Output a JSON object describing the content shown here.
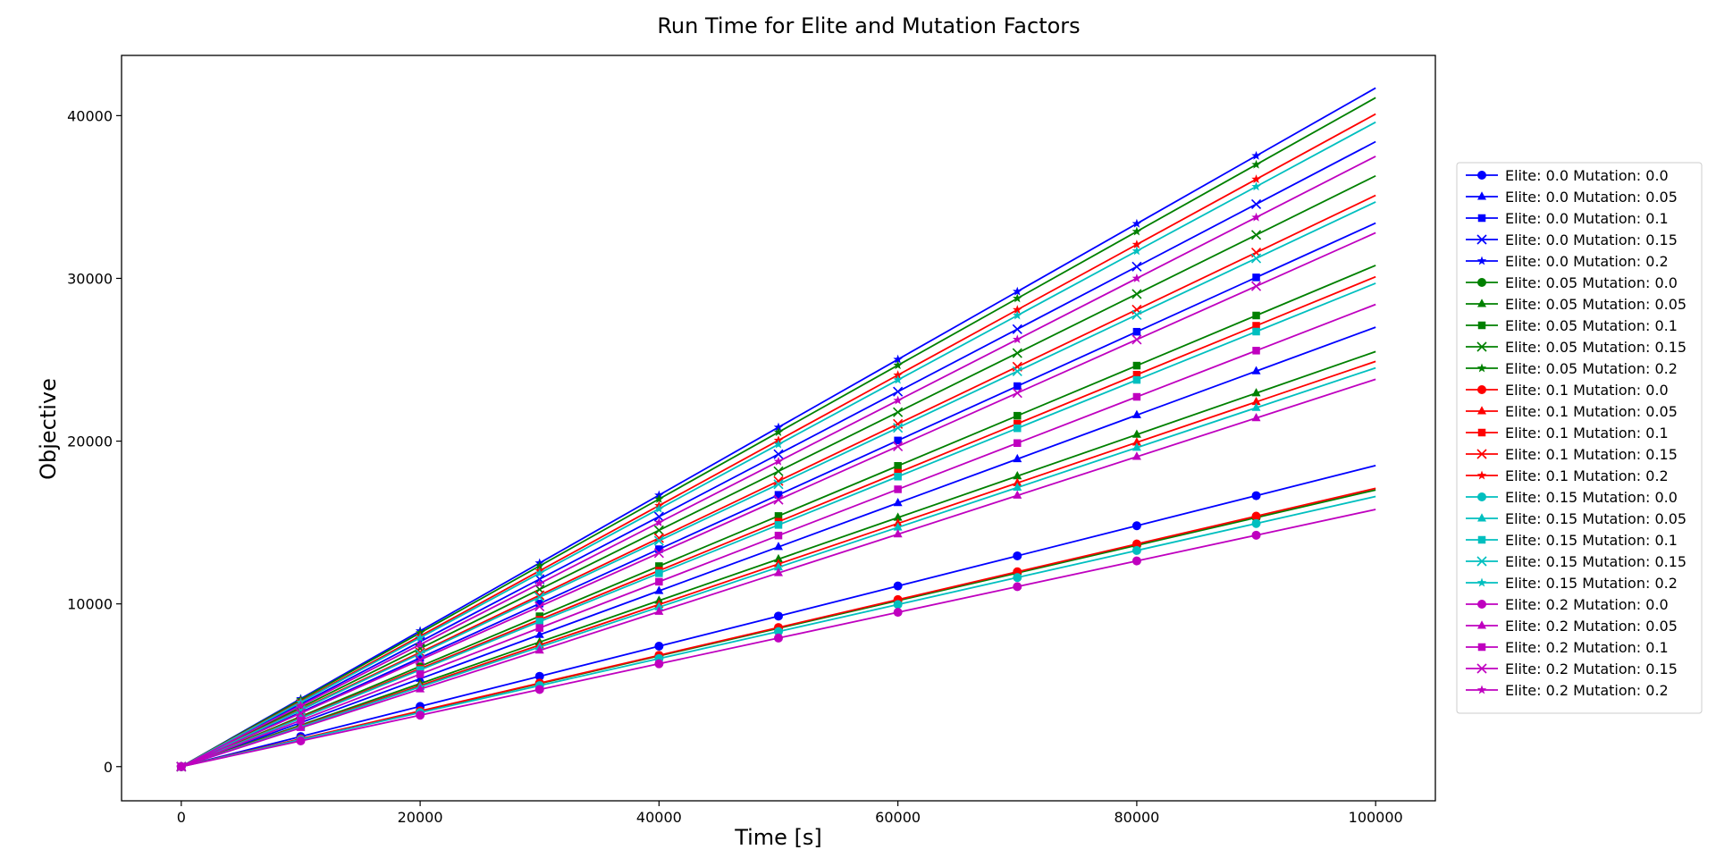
{
  "chart_data": {
    "type": "line",
    "title": "Run Time for Elite and Mutation Factors",
    "xlabel": "Time [s]",
    "ylabel": "Objective",
    "xlim": [
      -5000,
      105000
    ],
    "ylim": [
      -2100,
      43700
    ],
    "xticks": [
      0,
      20000,
      40000,
      60000,
      80000,
      100000
    ],
    "yticks": [
      0,
      10000,
      20000,
      30000,
      40000
    ],
    "x": [
      0,
      10000,
      20000,
      30000,
      40000,
      50000,
      60000,
      70000,
      80000,
      90000,
      100000
    ],
    "grid": false,
    "legend_position": "right",
    "series": [
      {
        "name": "Elite: 0.0 Mutation: 0.0",
        "color": "#0000ff",
        "marker": "circle",
        "values": [
          0,
          1850,
          3700,
          5550,
          7400,
          9250,
          11100,
          12950,
          14800,
          16650,
          18500
        ]
      },
      {
        "name": "Elite: 0.0 Mutation: 0.05",
        "color": "#0000ff",
        "marker": "triangle",
        "values": [
          0,
          2700,
          5400,
          8100,
          10800,
          13500,
          16200,
          18900,
          21600,
          24300,
          27000
        ]
      },
      {
        "name": "Elite: 0.0 Mutation: 0.1",
        "color": "#0000ff",
        "marker": "square",
        "values": [
          0,
          3340,
          6680,
          10020,
          13360,
          16700,
          20040,
          23380,
          26720,
          30060,
          33400
        ]
      },
      {
        "name": "Elite: 0.0 Mutation: 0.15",
        "color": "#0000ff",
        "marker": "x",
        "values": [
          0,
          3840,
          7680,
          11520,
          15360,
          19200,
          23040,
          26880,
          30720,
          34560,
          38400
        ]
      },
      {
        "name": "Elite: 0.0 Mutation: 0.2",
        "color": "#0000ff",
        "marker": "star",
        "values": [
          0,
          4170,
          8340,
          12510,
          16680,
          20850,
          25020,
          29190,
          33360,
          37530,
          41700
        ]
      },
      {
        "name": "Elite: 0.05 Mutation: 0.0",
        "color": "#008000",
        "marker": "circle",
        "values": [
          0,
          1700,
          3400,
          5100,
          6800,
          8500,
          10200,
          11900,
          13600,
          15300,
          17000
        ]
      },
      {
        "name": "Elite: 0.05 Mutation: 0.05",
        "color": "#008000",
        "marker": "triangle",
        "values": [
          0,
          2550,
          5100,
          7650,
          10200,
          12750,
          15300,
          17850,
          20400,
          22950,
          25500
        ]
      },
      {
        "name": "Elite: 0.05 Mutation: 0.1",
        "color": "#008000",
        "marker": "square",
        "values": [
          0,
          3080,
          6160,
          9240,
          12320,
          15400,
          18480,
          21560,
          24640,
          27720,
          30800
        ]
      },
      {
        "name": "Elite: 0.05 Mutation: 0.15",
        "color": "#008000",
        "marker": "x",
        "values": [
          0,
          3630,
          7260,
          10890,
          14520,
          18150,
          21780,
          25410,
          29040,
          32670,
          36300
        ]
      },
      {
        "name": "Elite: 0.05 Mutation: 0.2",
        "color": "#008000",
        "marker": "star",
        "values": [
          0,
          4110,
          8220,
          12330,
          16440,
          20550,
          24660,
          28770,
          32880,
          36990,
          41100
        ]
      },
      {
        "name": "Elite: 0.1 Mutation: 0.0",
        "color": "#ff0000",
        "marker": "circle",
        "values": [
          0,
          1710,
          3420,
          5130,
          6840,
          8550,
          10260,
          11970,
          13680,
          15390,
          17100
        ]
      },
      {
        "name": "Elite: 0.1 Mutation: 0.05",
        "color": "#ff0000",
        "marker": "triangle",
        "values": [
          0,
          2490,
          4980,
          7470,
          9960,
          12450,
          14940,
          17430,
          19920,
          22410,
          24900
        ]
      },
      {
        "name": "Elite: 0.1 Mutation: 0.1",
        "color": "#ff0000",
        "marker": "square",
        "values": [
          0,
          3010,
          6020,
          9030,
          12040,
          15050,
          18060,
          21070,
          24080,
          27090,
          30100
        ]
      },
      {
        "name": "Elite: 0.1 Mutation: 0.15",
        "color": "#ff0000",
        "marker": "x",
        "values": [
          0,
          3510,
          7020,
          10530,
          14040,
          17550,
          21060,
          24570,
          28080,
          31590,
          35100
        ]
      },
      {
        "name": "Elite: 0.1 Mutation: 0.2",
        "color": "#ff0000",
        "marker": "star",
        "values": [
          0,
          4010,
          8020,
          12030,
          16040,
          20050,
          24060,
          28070,
          32080,
          36090,
          40100
        ]
      },
      {
        "name": "Elite: 0.15 Mutation: 0.0",
        "color": "#00bfbf",
        "marker": "circle",
        "values": [
          0,
          1660,
          3320,
          4980,
          6640,
          8300,
          9960,
          11620,
          13280,
          14940,
          16600
        ]
      },
      {
        "name": "Elite: 0.15 Mutation: 0.05",
        "color": "#00bfbf",
        "marker": "triangle",
        "values": [
          0,
          2450,
          4900,
          7350,
          9800,
          12250,
          14700,
          17150,
          19600,
          22050,
          24500
        ]
      },
      {
        "name": "Elite: 0.15 Mutation: 0.1",
        "color": "#00bfbf",
        "marker": "square",
        "values": [
          0,
          2970,
          5940,
          8910,
          11880,
          14850,
          17820,
          20790,
          23760,
          26730,
          29700
        ]
      },
      {
        "name": "Elite: 0.15 Mutation: 0.15",
        "color": "#00bfbf",
        "marker": "x",
        "values": [
          0,
          3470,
          6940,
          10410,
          13880,
          17350,
          20820,
          24290,
          27760,
          31230,
          34700
        ]
      },
      {
        "name": "Elite: 0.15 Mutation: 0.2",
        "color": "#00bfbf",
        "marker": "star",
        "values": [
          0,
          3960,
          7920,
          11880,
          15840,
          19800,
          23760,
          27720,
          31680,
          35640,
          39600
        ]
      },
      {
        "name": "Elite: 0.2 Mutation: 0.0",
        "color": "#bf00bf",
        "marker": "circle",
        "values": [
          0,
          1580,
          3160,
          4740,
          6320,
          7900,
          9480,
          11060,
          12640,
          14220,
          15800
        ]
      },
      {
        "name": "Elite: 0.2 Mutation: 0.05",
        "color": "#bf00bf",
        "marker": "triangle",
        "values": [
          0,
          2380,
          4760,
          7140,
          9520,
          11900,
          14280,
          16660,
          19040,
          21420,
          23800
        ]
      },
      {
        "name": "Elite: 0.2 Mutation: 0.1",
        "color": "#bf00bf",
        "marker": "square",
        "values": [
          0,
          2840,
          5680,
          8520,
          11360,
          14200,
          17040,
          19880,
          22720,
          25560,
          28400
        ]
      },
      {
        "name": "Elite: 0.2 Mutation: 0.15",
        "color": "#bf00bf",
        "marker": "x",
        "values": [
          0,
          3280,
          6560,
          9840,
          13120,
          16400,
          19680,
          22960,
          26240,
          29520,
          32800
        ]
      },
      {
        "name": "Elite: 0.2 Mutation: 0.2",
        "color": "#bf00bf",
        "marker": "star",
        "values": [
          0,
          3750,
          7500,
          11250,
          15000,
          18750,
          22500,
          26250,
          30000,
          33750,
          37500
        ]
      }
    ]
  }
}
